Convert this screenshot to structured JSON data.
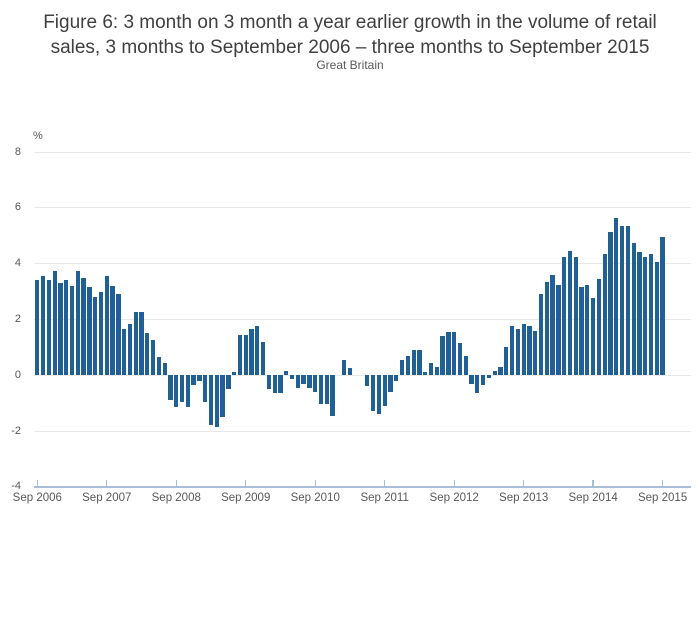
{
  "chart_data": {
    "type": "bar",
    "title": "Figure 6: 3 month on 3 month a year earlier growth in the volume of retail sales, 3 months to September 2006 – three months to September 2015",
    "subtitle": "Great Britain",
    "unit_label": "%",
    "ylabel": "%",
    "ylim": [
      -4,
      8
    ],
    "y_ticks": [
      8,
      6,
      4,
      2,
      0,
      -2,
      -4
    ],
    "grid": true,
    "legend": "none",
    "x_unit": "month",
    "x_range": [
      "Sep 2006",
      "Sep 2015"
    ],
    "x_tick_labels": [
      "Sep 2006",
      "Sep 2007",
      "Sep 2008",
      "Sep 2009",
      "Sep 2010",
      "Sep 2011",
      "Sep 2012",
      "Sep 2013",
      "Sep 2014",
      "Sep 2015"
    ],
    "values": [
      3.4,
      3.55,
      3.4,
      3.75,
      3.3,
      3.4,
      3.2,
      3.75,
      3.5,
      3.15,
      2.8,
      3.0,
      3.55,
      3.2,
      2.9,
      1.65,
      1.85,
      2.25,
      2.25,
      1.5,
      1.25,
      0.65,
      0.45,
      -0.9,
      -1.15,
      -0.95,
      -1.15,
      -0.35,
      -0.2,
      -0.95,
      -1.8,
      -1.85,
      -1.5,
      -0.5,
      0.1,
      1.45,
      1.45,
      1.65,
      1.75,
      1.2,
      -0.5,
      -0.65,
      -0.65,
      0.15,
      -0.15,
      -0.45,
      -0.3,
      -0.45,
      -0.6,
      -1.05,
      -1.05,
      -1.45,
      0,
      0.55,
      0.25,
      0,
      0,
      -0.4,
      -1.3,
      -1.4,
      -1.1,
      -0.6,
      -0.2,
      0.55,
      0.7,
      0.9,
      0.9,
      0.1,
      0.45,
      0.3,
      1.4,
      1.55,
      1.55,
      1.15,
      0.7,
      -0.3,
      -0.65,
      -0.35,
      -0.1,
      0.15,
      0.3,
      1.0,
      1.75,
      1.65,
      1.85,
      1.75,
      1.6,
      2.9,
      3.35,
      3.6,
      3.25,
      4.25,
      4.45,
      4.25,
      3.15,
      3.25,
      2.75,
      3.45,
      4.35,
      5.15,
      5.65,
      5.35,
      5.35,
      4.75,
      4.4,
      4.25,
      4.35,
      4.05,
      4.95
    ]
  },
  "colors": {
    "bar": "#206095",
    "gridline": "#e8e8e8",
    "axis": "#aabdd6",
    "title_text": "#404041",
    "label_text": "#58595b"
  }
}
